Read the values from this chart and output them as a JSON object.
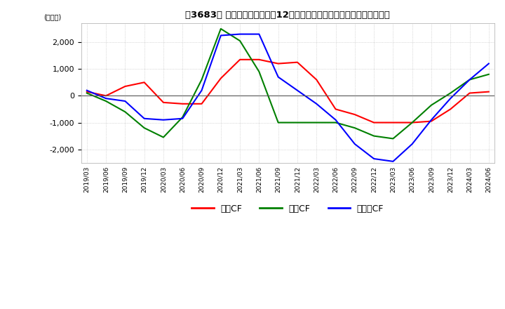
{
  "title": "　3683、 キャッシュフローの12か月移動合計の対前年同期増減額の推移",
  "title_bracket": "　3683、",
  "ylabel": "(百万円)",
  "ylim": [
    -2500,
    2700
  ],
  "yticks": [
    -2000,
    -1000,
    0,
    1000,
    2000
  ],
  "grid_color": "#bbbbbb",
  "grid_style": "dotted",
  "background_color": "#ffffff",
  "dates": [
    "2019/03",
    "2019/06",
    "2019/09",
    "2019/12",
    "2020/03",
    "2020/06",
    "2020/09",
    "2020/12",
    "2021/03",
    "2021/06",
    "2021/09",
    "2021/12",
    "2022/03",
    "2022/06",
    "2022/09",
    "2022/12",
    "2023/03",
    "2023/06",
    "2023/09",
    "2023/12",
    "2024/03",
    "2024/06"
  ],
  "operating_cf": [
    150,
    0,
    350,
    500,
    -250,
    -300,
    -300,
    650,
    1350,
    1350,
    1200,
    1250,
    600,
    -500,
    -700,
    -1000,
    -1000,
    -1000,
    -950,
    -500,
    100,
    150
  ],
  "investing_cf": [
    100,
    -200,
    -600,
    -1200,
    -1550,
    -800,
    600,
    2500,
    2050,
    900,
    -1000,
    -1000,
    -1000,
    -1000,
    -1200,
    -1500,
    -1600,
    -1000,
    -350,
    100,
    600,
    800
  ],
  "free_cf": [
    200,
    -100,
    -200,
    -850,
    -900,
    -850,
    200,
    2250,
    2300,
    2300,
    700,
    200,
    -300,
    -900,
    -1800,
    -2350,
    -2450,
    -1800,
    -900,
    -100,
    600,
    1200
  ],
  "operating_color": "#ff0000",
  "investing_color": "#008000",
  "free_color": "#0000ff",
  "line_width": 1.5,
  "legend_labels": [
    "営業CF",
    "投賃CF",
    "フリーCF"
  ]
}
